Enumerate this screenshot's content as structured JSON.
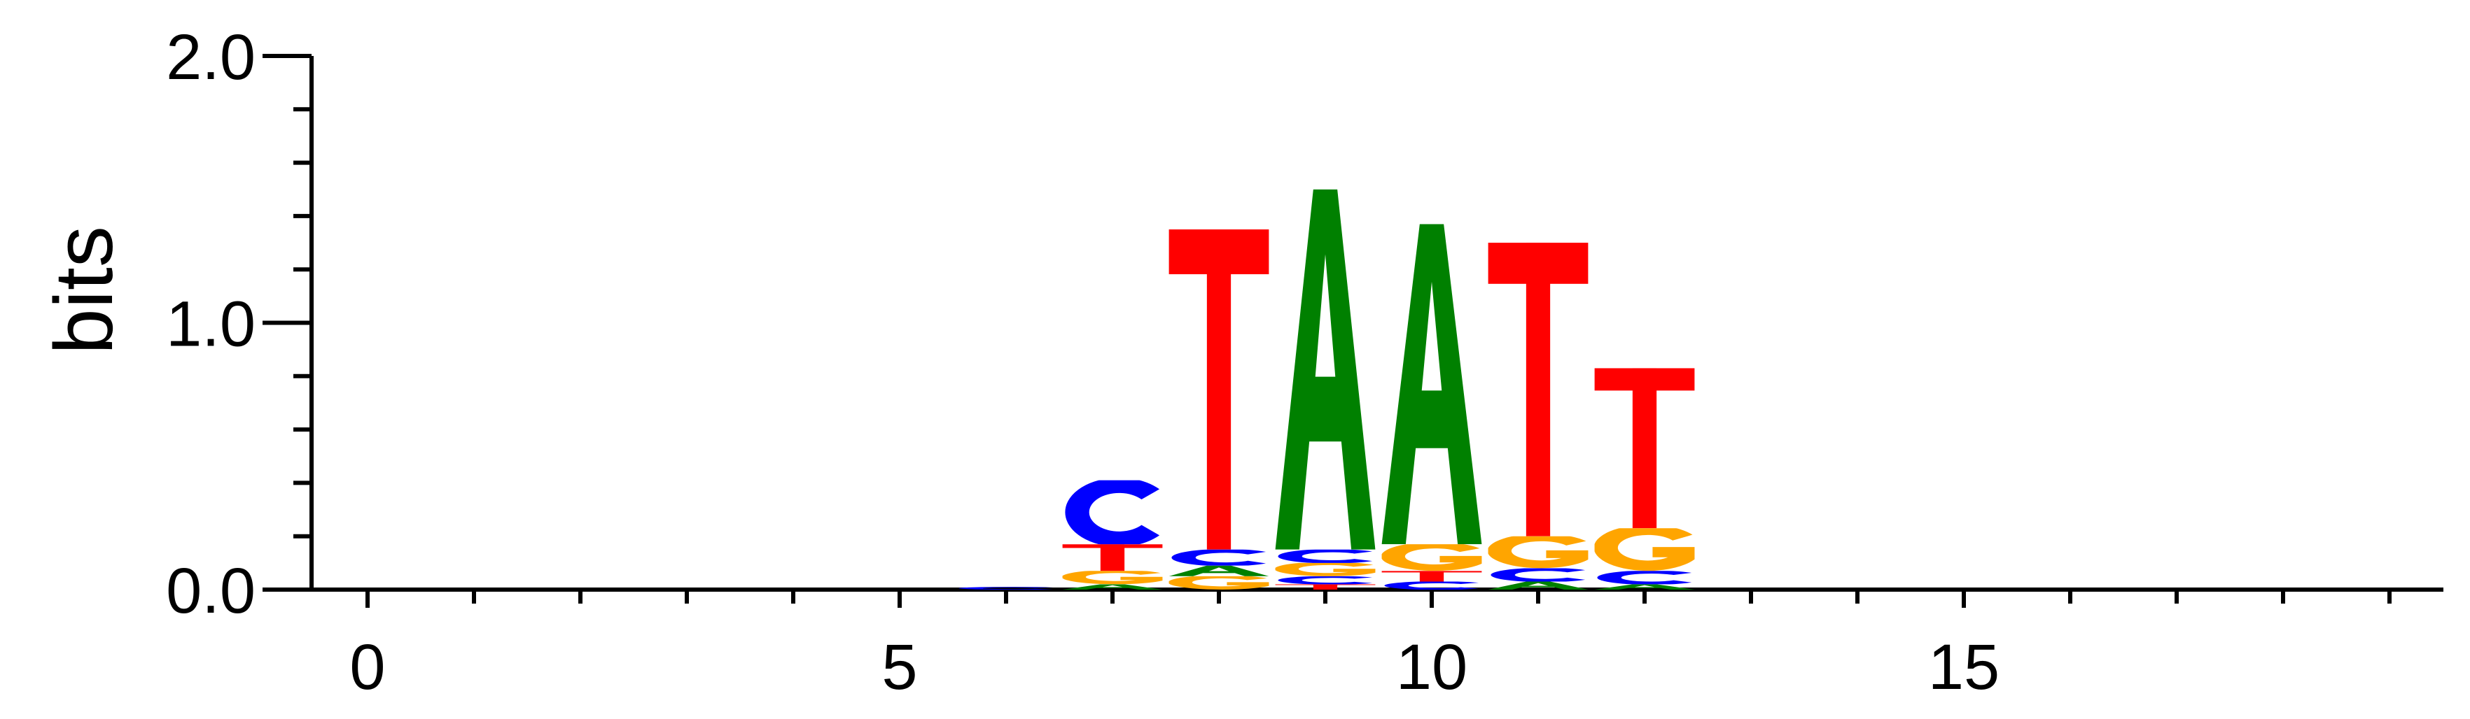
{
  "chart_data": {
    "type": "sequence-logo",
    "ylabel": "bits",
    "ylim": [
      0,
      2
    ],
    "xlim": [
      -0.5,
      19
    ],
    "y_ticks": [
      "0.0",
      "1.0",
      "2.0"
    ],
    "x_ticks": [
      "0",
      "5",
      "10",
      "15"
    ],
    "y_tick_values": [
      0,
      1,
      2
    ],
    "x_tick_values": [
      0,
      5,
      10,
      15
    ],
    "colors": {
      "A": "#008000",
      "C": "#0000ff",
      "G": "#ffa500",
      "T": "#ff0000"
    },
    "positions": [
      {
        "pos": 6,
        "stack": [
          [
            "C",
            0.01
          ]
        ]
      },
      {
        "pos": 7,
        "stack": [
          [
            "A",
            0.02
          ],
          [
            "G",
            0.05
          ],
          [
            "T",
            0.1
          ],
          [
            "C",
            0.24
          ]
        ]
      },
      {
        "pos": 8,
        "stack": [
          [
            "G",
            0.05
          ],
          [
            "A",
            0.04
          ],
          [
            "C",
            0.06
          ],
          [
            "T",
            1.2
          ]
        ]
      },
      {
        "pos": 9,
        "stack": [
          [
            "T",
            0.02
          ],
          [
            "C",
            0.03
          ],
          [
            "G",
            0.05
          ],
          [
            "C",
            0.05
          ],
          [
            "A",
            1.35
          ]
        ]
      },
      {
        "pos": 10,
        "stack": [
          [
            "C",
            0.03
          ],
          [
            "T",
            0.04
          ],
          [
            "G",
            0.1
          ],
          [
            "A",
            1.2
          ]
        ]
      },
      {
        "pos": 11,
        "stack": [
          [
            "A",
            0.03
          ],
          [
            "C",
            0.05
          ],
          [
            "G",
            0.12
          ],
          [
            "T",
            1.1
          ]
        ]
      },
      {
        "pos": 12,
        "stack": [
          [
            "A",
            0.02
          ],
          [
            "C",
            0.05
          ],
          [
            "G",
            0.16
          ],
          [
            "T",
            0.6
          ]
        ]
      }
    ]
  }
}
